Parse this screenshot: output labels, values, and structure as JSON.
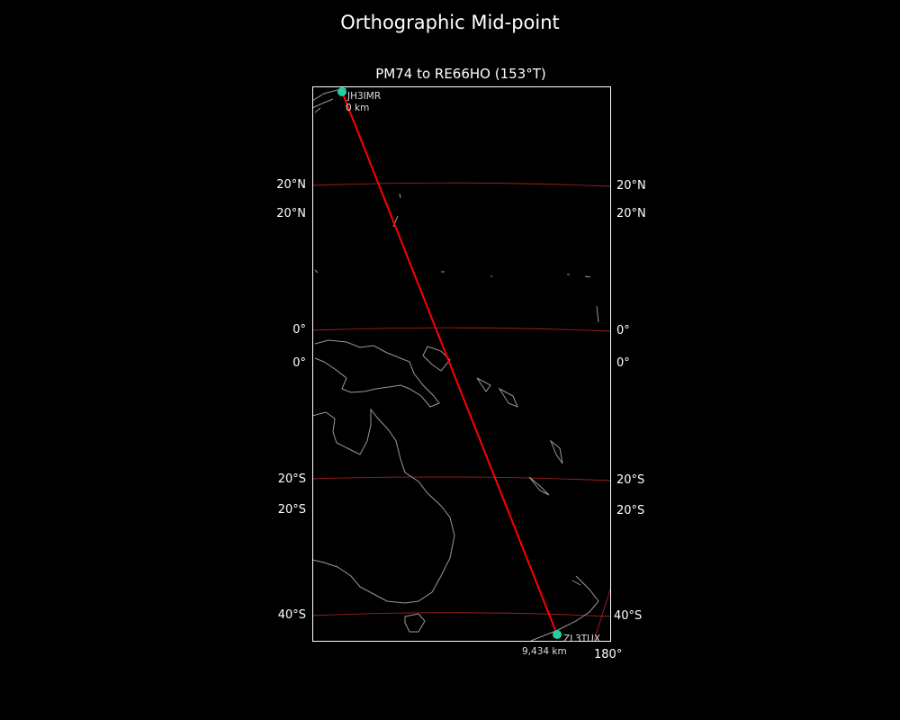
{
  "figure": {
    "title": "Orthographic Mid-point",
    "subtitle": "PM74 to RE66HO (153°T)"
  },
  "map": {
    "projection": "orthographic",
    "grid_labels_left": [
      "20°N",
      "20°N",
      "0°",
      "0°",
      "20°S",
      "20°S",
      "40°S"
    ],
    "grid_labels_right": [
      "20°N",
      "20°N",
      "0°",
      "0°",
      "20°S",
      "20°S",
      "40°S"
    ],
    "meridian_label": "180°",
    "route": {
      "bearing": "153°T",
      "start": {
        "call": "JH3IMR",
        "distance": "0 km"
      },
      "end": {
        "call": "ZL3TUX",
        "distance": "9,434 km"
      }
    },
    "colors": {
      "route": "#ff0000",
      "grid": "#a02020",
      "station": "#20d0a0",
      "coast": "#999999",
      "background": "#000000"
    }
  }
}
